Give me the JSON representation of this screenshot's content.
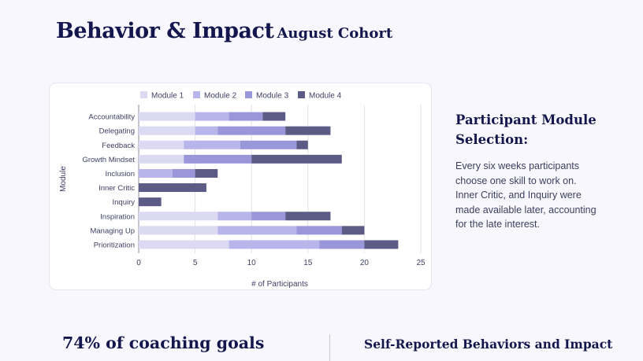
{
  "header": {
    "title": "Behavior & Impact",
    "subtitle": "August Cohort"
  },
  "sidebar": {
    "heading": "Participant Module Selection:",
    "body": "Every six weeks participants choose one skill to work on. Inner Critic, and Inquiry were made available later, accounting for the late interest."
  },
  "footer": {
    "left_heading": "74% of coaching goals",
    "right_heading": "Self-Reported Behaviors and Impact"
  },
  "colors": {
    "module_1": "#dcdaf3",
    "module_2": "#b8b5ea",
    "module_3": "#9996d9",
    "module_4": "#5c5b86",
    "grid": "#e2e2ea",
    "axis_text": "#3d3f63"
  },
  "chart_data": {
    "type": "bar",
    "orientation": "horizontal",
    "stacked": true,
    "title": "",
    "xlabel": "# of Participants",
    "ylabel": "Module",
    "xlim": [
      0,
      25
    ],
    "xticks": [
      0,
      5,
      10,
      15,
      20,
      25
    ],
    "grid": true,
    "legend_position": "top",
    "categories": [
      "Accountability",
      "Delegating",
      "Feedback",
      "Growth Mindset",
      "Inclusion",
      "Inner Critic",
      "Inquiry",
      "Inspiration",
      "Managing Up",
      "Prioritization"
    ],
    "series": [
      {
        "name": "Module 1",
        "values": [
          5,
          5,
          4,
          4,
          0,
          0,
          0,
          7,
          7,
          8
        ]
      },
      {
        "name": "Module 2",
        "values": [
          3,
          2,
          5,
          0,
          3,
          0,
          0,
          3,
          7,
          8
        ]
      },
      {
        "name": "Module 3",
        "values": [
          3,
          6,
          5,
          6,
          2,
          0,
          0,
          3,
          4,
          4
        ]
      },
      {
        "name": "Module 4",
        "values": [
          2,
          4,
          1,
          8,
          2,
          6,
          2,
          4,
          2,
          3
        ]
      }
    ]
  }
}
